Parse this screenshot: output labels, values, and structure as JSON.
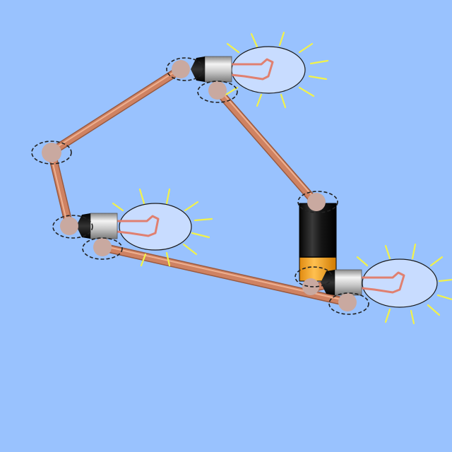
{
  "scene": {
    "background": "#99c2fe",
    "wire_color": "#c87a5a",
    "wire_highlight": "#e8a888",
    "junction_color": "#c9a9a0",
    "selection_ring_color": "#333333",
    "bulb_glass_color": "#c8dcff",
    "filament_color": "#e08070",
    "ray_color": "#f0f040",
    "battery_body_color": "#1a1a1a",
    "battery_terminal_color": "#f5a630"
  },
  "components": {
    "wires": 5,
    "light_bulbs": 3,
    "batteries": 1,
    "bulbs_lit": true
  }
}
